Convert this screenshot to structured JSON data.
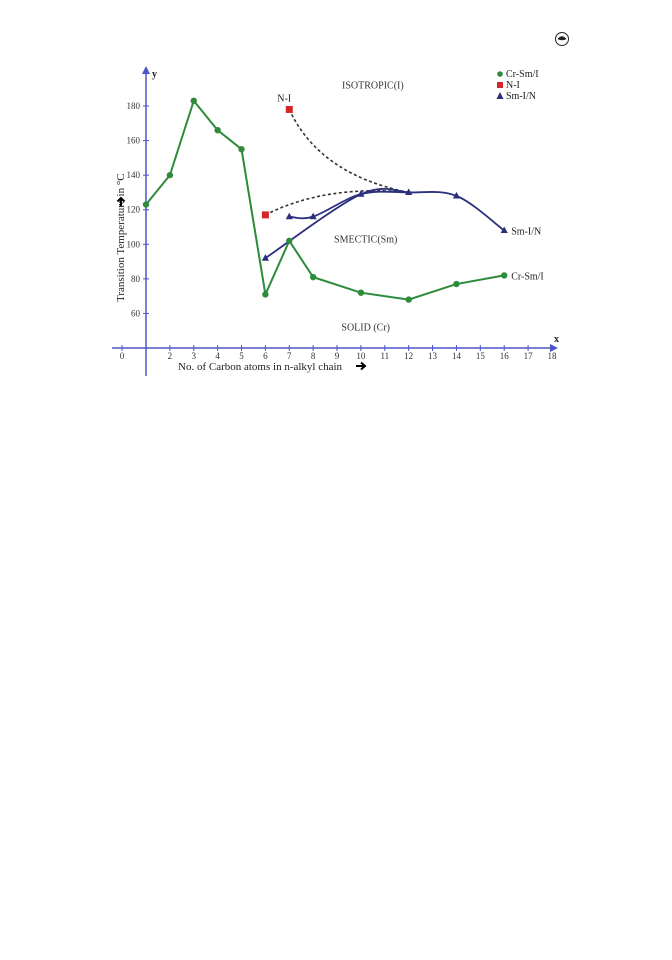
{
  "chart_data": {
    "type": "line",
    "ylabel": "Transition Temperature in °C",
    "xlabel": "No. of Carbon atoms in n-alkyl chain",
    "x_axis_letter": "x",
    "y_axis_letter": "y",
    "xlim": [
      0,
      18
    ],
    "ylim": [
      40,
      200
    ],
    "x_ticks": [
      0,
      2,
      3,
      4,
      5,
      6,
      7,
      8,
      9,
      10,
      11,
      12,
      13,
      14,
      15,
      16,
      17,
      18
    ],
    "y_ticks": [
      60,
      80,
      100,
      120,
      140,
      160,
      180
    ],
    "legend_position": "top-right",
    "regions": [
      {
        "label": "ISOTROPIC(I)",
        "x": 10.5,
        "y": 190
      },
      {
        "label": "SMECTIC(Sm)",
        "x": 10.2,
        "y": 101
      },
      {
        "label": "SOLID (Cr)",
        "x": 10.2,
        "y": 50
      }
    ],
    "series": [
      {
        "name": "Cr-Sm/I",
        "color": "#2e8b3a",
        "marker": "circle",
        "end_label": "Cr-Sm/I",
        "points": [
          [
            1,
            123
          ],
          [
            2,
            140
          ],
          [
            3,
            183
          ],
          [
            4,
            166
          ],
          [
            5,
            155
          ],
          [
            6,
            71
          ],
          [
            7,
            102
          ],
          [
            8,
            81
          ],
          [
            10,
            72
          ],
          [
            12,
            68
          ],
          [
            14,
            77
          ],
          [
            16,
            82
          ]
        ]
      },
      {
        "name": "N-I",
        "color": "#d62728",
        "marker": "square",
        "point_label": "N-I",
        "points": [
          [
            6,
            117
          ],
          [
            7,
            178
          ]
        ]
      },
      {
        "name": "Sm-I/N",
        "color": "#2b2f7c",
        "marker": "triangle",
        "end_label": "Sm-I/N",
        "points": [
          [
            6,
            92
          ],
          [
            7,
            116
          ],
          [
            8,
            116
          ],
          [
            10,
            129
          ],
          [
            12,
            130
          ],
          [
            14,
            128
          ],
          [
            16,
            108
          ]
        ]
      }
    ]
  }
}
